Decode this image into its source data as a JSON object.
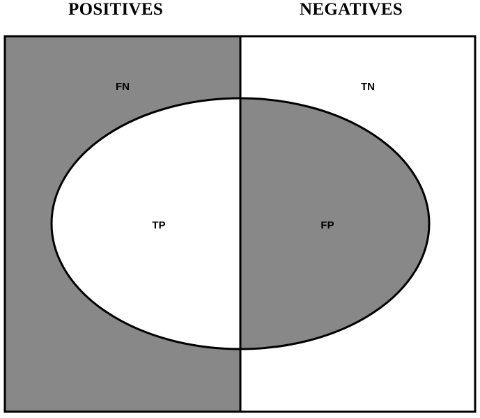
{
  "headers": {
    "positives": "POSITIVES",
    "negatives": "NEGATIVES"
  },
  "regions": {
    "false_negative": "FN",
    "true_negative": "TN",
    "true_positive": "TP",
    "false_positive": "FP"
  },
  "colors": {
    "shaded": "#888888",
    "unshaded": "#ffffff",
    "outline": "#000000"
  }
}
